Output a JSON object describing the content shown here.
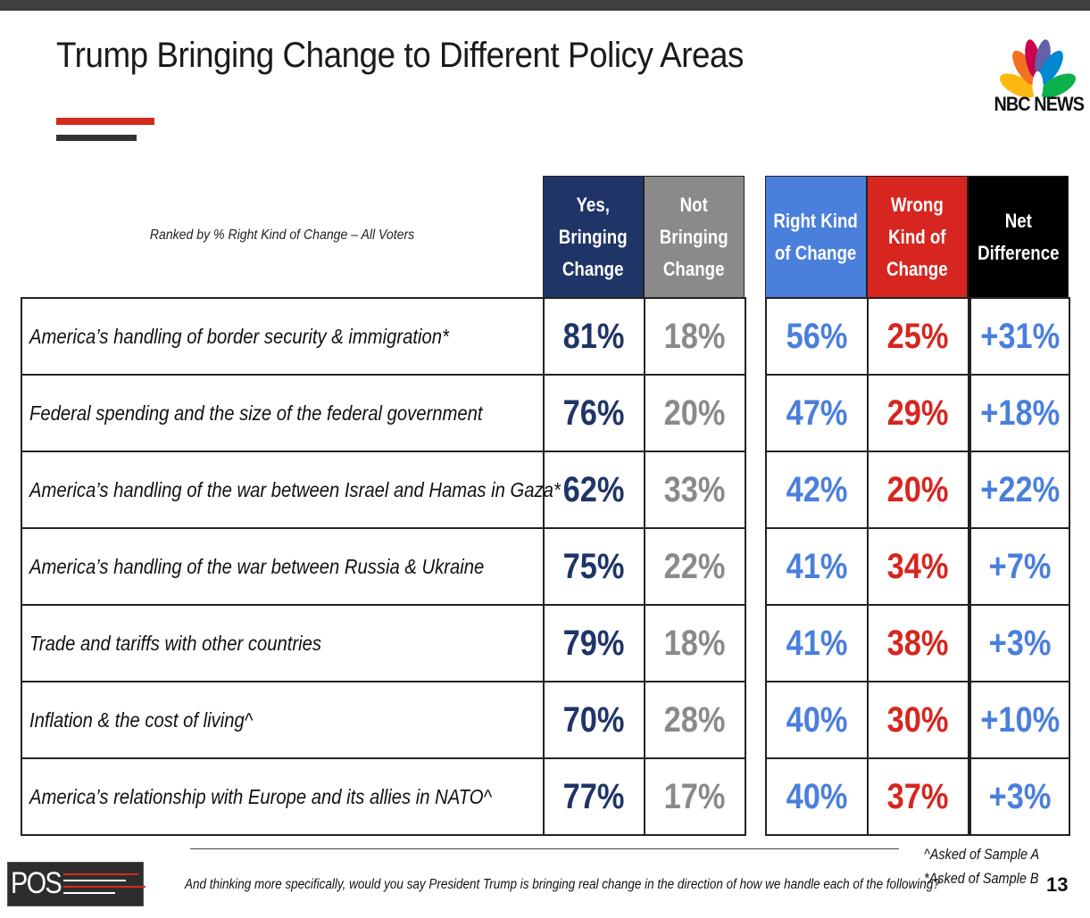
{
  "title": "Trump Bringing Change to Different Policy Areas",
  "brand": {
    "logo_text": "NBC NEWS",
    "pos_text": "POS",
    "accent_red": "#d52b1e",
    "accent_dark": "#333333"
  },
  "rank_note": "Ranked by % Right Kind of Change – All Voters",
  "headers": [
    {
      "label": "Yes,\nBringing\nChange",
      "color": "#1f3567"
    },
    {
      "label": "Not\nBringing\nChange",
      "color": "#8a8a8a"
    },
    {
      "label": "Right Kind\nof Change",
      "color": "#4a7fdc"
    },
    {
      "label": "Wrong\nKind of\nChange",
      "color": "#d6261f"
    },
    {
      "label": "Net\nDifference",
      "color": "#000000"
    }
  ],
  "value_colors": [
    "#1f3567",
    "#8a8a8a",
    "#4a7fdc",
    "#d6261f",
    "#4a7fdc"
  ],
  "chart_data": {
    "type": "table",
    "title": "Trump Bringing Change to Different Policy Areas",
    "columns": [
      "Yes, Bringing Change",
      "Not Bringing Change",
      "Right Kind of Change",
      "Wrong Kind of Change",
      "Net Difference"
    ],
    "rows": [
      {
        "label": "America’s handling of border security & immigration*",
        "values": [
          "81%",
          "18%",
          "56%",
          "25%",
          "+31%"
        ]
      },
      {
        "label": "Federal spending and the size of the federal government",
        "values": [
          "76%",
          "20%",
          "47%",
          "29%",
          "+18%"
        ]
      },
      {
        "label": "America’s handling of the war between Israel and Hamas in Gaza*",
        "values": [
          "62%",
          "33%",
          "42%",
          "20%",
          "+22%"
        ]
      },
      {
        "label": "America’s handling of the war between Russia & Ukraine",
        "values": [
          "75%",
          "22%",
          "41%",
          "34%",
          "+7%"
        ]
      },
      {
        "label": "Trade and tariffs with other countries",
        "values": [
          "79%",
          "18%",
          "41%",
          "38%",
          "+3%"
        ]
      },
      {
        "label": "Inflation & the cost of living^",
        "values": [
          "70%",
          "28%",
          "40%",
          "30%",
          "+10%"
        ]
      },
      {
        "label": "America’s relationship with Europe and its allies in NATO^",
        "values": [
          "77%",
          "17%",
          "40%",
          "37%",
          "+3%"
        ]
      }
    ]
  },
  "footnotes": {
    "question": "And thinking more specifically, would you say President Trump is bringing real change in the direction of how we handle each of the following?",
    "sample_a": "^Asked of Sample A",
    "sample_b": "*Asked of Sample B"
  },
  "page_number": "13"
}
